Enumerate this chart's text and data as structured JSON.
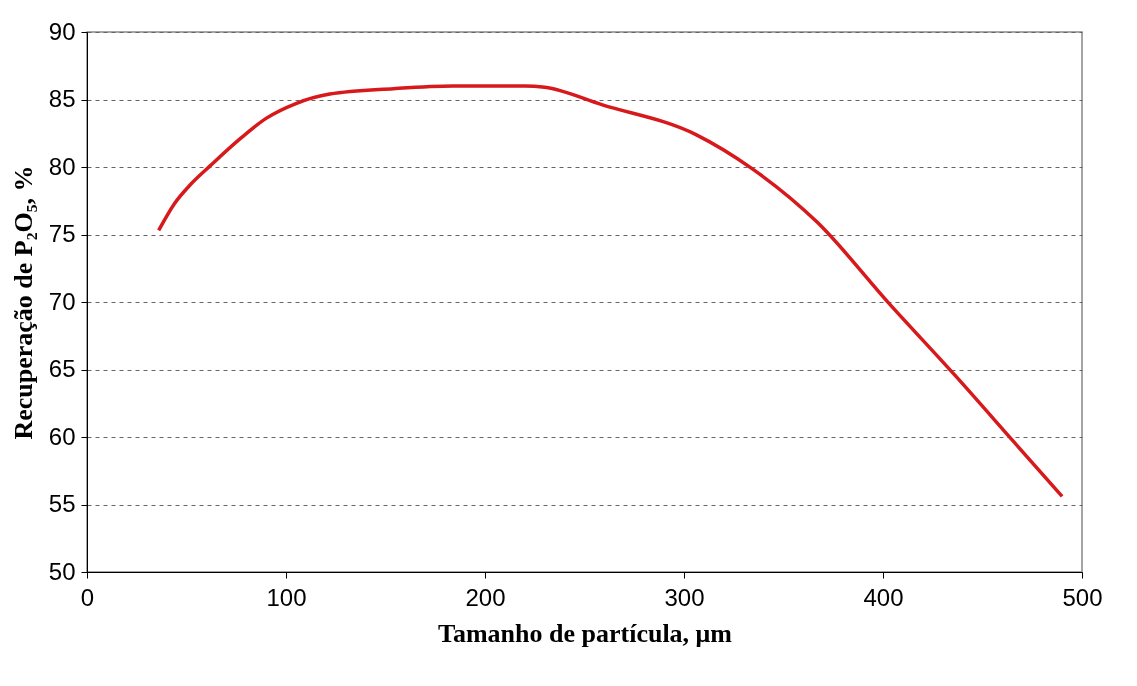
{
  "chart_data": {
    "type": "line",
    "xlabel": "Tamanho de partícula, μm",
    "ylabel": "Recuperação de P₂O₅, %",
    "x": [
      36,
      44,
      52,
      62,
      77,
      90,
      105,
      122,
      154,
      184,
      220,
      230,
      259,
      306,
      334,
      367,
      403,
      436,
      466,
      490
    ],
    "series": [
      {
        "color": "#d7191c",
        "values": [
          75.3,
          77.3,
          78.7,
          80.1,
          82.1,
          83.6,
          84.7,
          85.4,
          85.8,
          86.0,
          86.0,
          85.9,
          84.6,
          82.4,
          79.9,
          75.9,
          69.9,
          64.6,
          59.6,
          55.6
        ]
      }
    ],
    "xlim": [
      0,
      500
    ],
    "xticks": [
      0,
      100,
      200,
      300,
      400,
      500
    ],
    "ylim": [
      50,
      90
    ],
    "yticks": [
      50,
      55,
      60,
      65,
      70,
      75,
      80,
      85,
      90
    ],
    "grid": "y",
    "marker": "none",
    "line_style": "solid"
  }
}
